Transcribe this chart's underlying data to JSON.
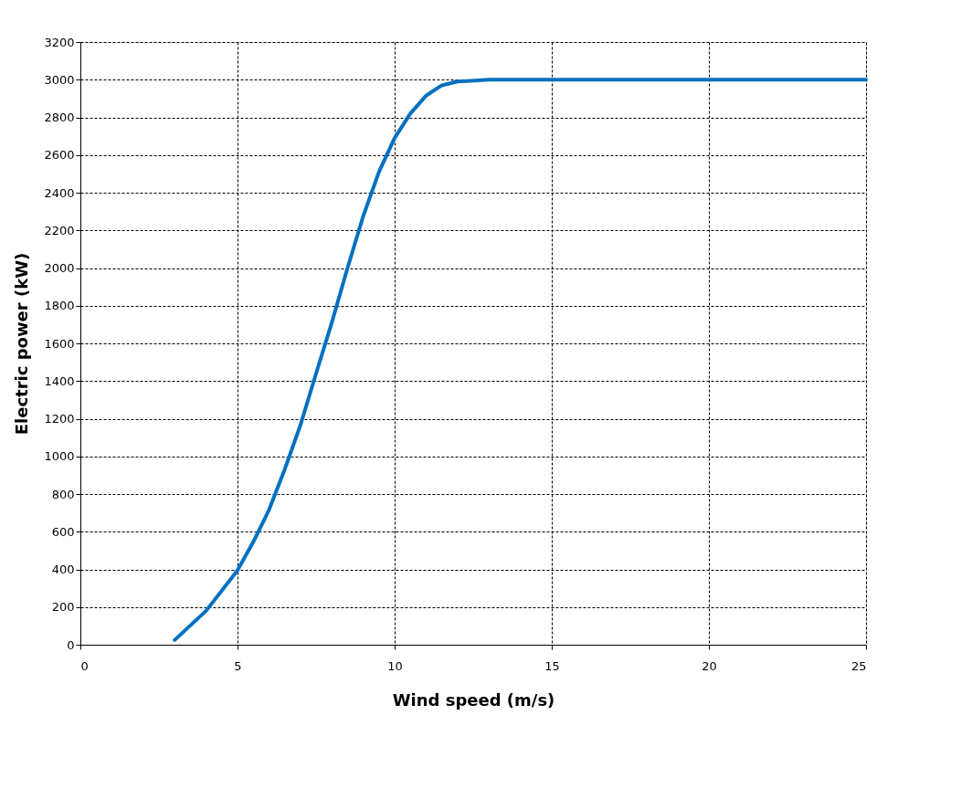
{
  "chart_data": {
    "type": "line",
    "xlabel": "Wind speed (m/s)",
    "ylabel": "Electric power (kW)",
    "x": [
      3,
      4,
      5,
      5.5,
      6,
      6.5,
      7,
      7.5,
      8,
      8.5,
      9,
      9.5,
      10,
      10.5,
      11,
      11.5,
      12,
      13,
      14,
      15,
      20,
      25
    ],
    "series": [
      {
        "color": "#0070c0",
        "values": [
          25,
          180,
          395,
          545,
          715,
          930,
          1165,
          1440,
          1710,
          2000,
          2275,
          2510,
          2690,
          2820,
          2915,
          2970,
          2990,
          3000,
          3000,
          3000,
          3000,
          3000
        ]
      }
    ],
    "xlim": [
      0,
      25
    ],
    "xticks": [
      0,
      5,
      10,
      15,
      20,
      25
    ],
    "ylim": [
      0,
      3200
    ],
    "yticks": [
      0,
      200,
      400,
      600,
      800,
      1000,
      1200,
      1400,
      1600,
      1800,
      2000,
      2200,
      2400,
      2600,
      2800,
      3000,
      3200
    ],
    "grid": true,
    "marker": "none",
    "line_style": "solid"
  }
}
